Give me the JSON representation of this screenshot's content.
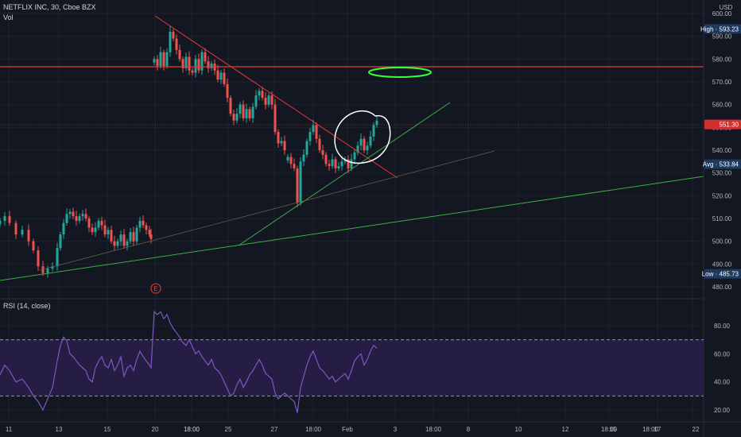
{
  "header": {
    "symbol_line": "NETFLIX INC, 30, Cboe BZX",
    "volume_label": "Vol",
    "currency": "USD",
    "rsi_label": "RSI (14, close)",
    "earnings_marker": "E"
  },
  "colors": {
    "background": "#131722",
    "up": "#26a69a",
    "down": "#ef5350",
    "green_line": "#3cb043",
    "red_line": "#e53935",
    "rsi_line": "#7e57c2",
    "rsi_fill": "#2a1f4a",
    "badge_blue": "#1e3a5f",
    "badge_red": "#d32f2f"
  },
  "chart_data": [
    {
      "type": "candlestick",
      "title": "NETFLIX INC, 30, Cboe BZX",
      "ylim": [
        478,
        602
      ],
      "y_ticks": [
        480,
        490,
        500,
        510,
        520,
        530,
        540,
        550,
        560,
        570,
        580,
        590,
        600
      ],
      "x_ticks": [
        "11",
        "13",
        "15",
        "18:00",
        "20",
        "18:00",
        "25",
        "27",
        "18:00",
        "Feb",
        "3",
        "18:00",
        "8",
        "10",
        "12",
        "18:00",
        "15",
        "17",
        "18:00",
        "22"
      ],
      "price_badges": {
        "high": {
          "label": "High",
          "value": "593.23"
        },
        "last": {
          "value": "551.30"
        },
        "avg": {
          "label": "Avg",
          "value": "533.84"
        },
        "low": {
          "label": "Low",
          "value": "485.73"
        }
      },
      "path_points": [
        [
          0,
          509
        ],
        [
          6,
          511
        ],
        [
          12,
          508
        ],
        [
          20,
          503
        ],
        [
          28,
          505
        ],
        [
          36,
          500
        ],
        [
          42,
          496
        ],
        [
          48,
          489
        ],
        [
          54,
          486
        ],
        [
          60,
          488
        ],
        [
          66,
          489
        ],
        [
          72,
          497
        ],
        [
          76,
          503
        ],
        [
          80,
          508
        ],
        [
          84,
          512
        ],
        [
          88,
          513
        ],
        [
          92,
          511
        ],
        [
          96,
          509
        ],
        [
          100,
          511
        ],
        [
          104,
          512
        ],
        [
          108,
          510
        ],
        [
          112,
          506
        ],
        [
          116,
          504
        ],
        [
          120,
          506
        ],
        [
          124,
          509
        ],
        [
          128,
          507
        ],
        [
          132,
          503
        ],
        [
          136,
          505
        ],
        [
          140,
          500
        ],
        [
          144,
          498
        ],
        [
          148,
          500
        ],
        [
          152,
          503
        ],
        [
          156,
          498
        ],
        [
          160,
          500
        ],
        [
          164,
          504
        ],
        [
          168,
          500
        ],
        [
          172,
          506
        ],
        [
          176,
          509
        ],
        [
          180,
          507
        ],
        [
          184,
          505
        ],
        [
          188,
          503
        ],
        [
          190,
          501
        ],
        [
          194,
          580
        ],
        [
          198,
          577
        ],
        [
          202,
          583
        ],
        [
          206,
          577
        ],
        [
          210,
          583
        ],
        [
          214,
          592
        ],
        [
          218,
          589
        ],
        [
          222,
          584
        ],
        [
          226,
          580
        ],
        [
          230,
          576
        ],
        [
          234,
          581
        ],
        [
          238,
          575
        ],
        [
          242,
          574
        ],
        [
          246,
          580
        ],
        [
          250,
          575
        ],
        [
          254,
          583
        ],
        [
          258,
          579
        ],
        [
          262,
          576
        ],
        [
          266,
          578
        ],
        [
          270,
          575
        ],
        [
          274,
          571
        ],
        [
          278,
          574
        ],
        [
          282,
          569
        ],
        [
          286,
          563
        ],
        [
          290,
          556
        ],
        [
          294,
          553
        ],
        [
          298,
          556
        ],
        [
          302,
          560
        ],
        [
          306,
          554
        ],
        [
          310,
          558
        ],
        [
          314,
          554
        ],
        [
          318,
          559
        ],
        [
          322,
          564
        ],
        [
          326,
          566
        ],
        [
          330,
          563
        ],
        [
          334,
          560
        ],
        [
          338,
          564
        ],
        [
          342,
          560
        ],
        [
          346,
          548
        ],
        [
          350,
          543
        ],
        [
          354,
          544
        ],
        [
          358,
          540
        ],
        [
          362,
          537
        ],
        [
          366,
          534
        ],
        [
          370,
          532
        ],
        [
          374,
          517
        ],
        [
          378,
          535
        ],
        [
          382,
          538
        ],
        [
          386,
          544
        ],
        [
          390,
          548
        ],
        [
          394,
          551
        ],
        [
          398,
          545
        ],
        [
          402,
          540
        ],
        [
          406,
          538
        ],
        [
          410,
          534
        ],
        [
          414,
          533
        ],
        [
          418,
          536
        ],
        [
          422,
          532
        ],
        [
          426,
          533
        ],
        [
          430,
          535
        ],
        [
          434,
          536
        ],
        [
          438,
          532
        ],
        [
          442,
          536
        ],
        [
          446,
          539
        ],
        [
          450,
          542
        ],
        [
          454,
          545
        ],
        [
          458,
          540
        ],
        [
          462,
          542
        ],
        [
          466,
          546
        ],
        [
          470,
          551
        ],
        [
          474,
          553
        ]
      ]
    },
    {
      "type": "line",
      "title": "RSI (14, close)",
      "ylim": [
        10,
        95
      ],
      "y_ticks": [
        20,
        40,
        60,
        80
      ],
      "band": [
        30,
        70
      ],
      "x": [
        0,
        6,
        12,
        20,
        28,
        36,
        42,
        48,
        54,
        60,
        66,
        72,
        76,
        80,
        84,
        88,
        92,
        96,
        100,
        104,
        108,
        112,
        116,
        120,
        124,
        128,
        132,
        136,
        140,
        144,
        148,
        152,
        156,
        160,
        164,
        168,
        172,
        176,
        180,
        184,
        188,
        190,
        194,
        198,
        202,
        206,
        210,
        214,
        218,
        222,
        226,
        230,
        234,
        238,
        242,
        246,
        250,
        254,
        258,
        262,
        266,
        270,
        274,
        278,
        282,
        286,
        290,
        294,
        298,
        302,
        306,
        310,
        314,
        318,
        322,
        326,
        330,
        334,
        338,
        342,
        346,
        350,
        354,
        358,
        362,
        366,
        370,
        374,
        378,
        382,
        386,
        390,
        394,
        398,
        402,
        406,
        410,
        414,
        418,
        422,
        426,
        430,
        434,
        438,
        442,
        446,
        450,
        454,
        458,
        462,
        466,
        470,
        474
      ],
      "values": [
        45,
        52,
        48,
        40,
        42,
        36,
        30,
        26,
        20,
        28,
        36,
        55,
        66,
        72,
        69,
        60,
        58,
        55,
        52,
        50,
        48,
        42,
        40,
        50,
        55,
        58,
        52,
        50,
        56,
        48,
        52,
        58,
        44,
        50,
        52,
        48,
        56,
        62,
        58,
        55,
        52,
        50,
        90,
        88,
        90,
        85,
        88,
        82,
        78,
        75,
        72,
        68,
        66,
        70,
        65,
        60,
        62,
        58,
        55,
        52,
        56,
        50,
        48,
        45,
        40,
        35,
        30,
        32,
        38,
        42,
        36,
        40,
        45,
        48,
        52,
        56,
        52,
        46,
        44,
        42,
        32,
        28,
        30,
        32,
        30,
        28,
        26,
        18,
        36,
        44,
        52,
        58,
        62,
        56,
        50,
        48,
        45,
        42,
        44,
        40,
        42,
        44,
        46,
        42,
        48,
        55,
        58,
        60,
        52,
        56,
        62,
        66,
        64
      ]
    }
  ]
}
